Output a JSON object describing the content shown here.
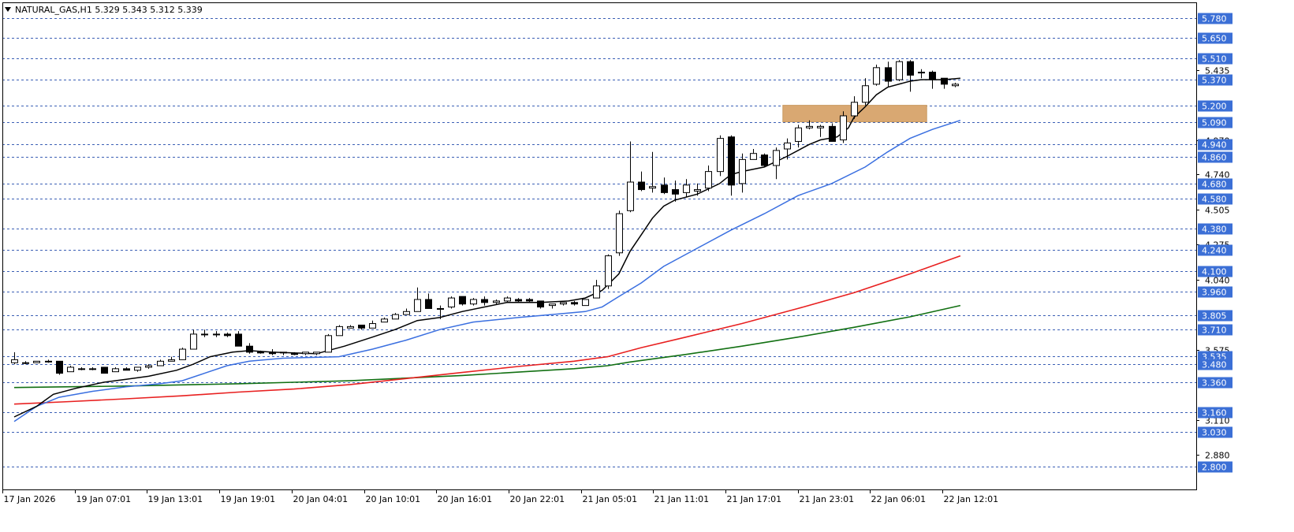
{
  "header": {
    "symbol_line": "NATURAL_GAS,H1  5.329 5.343 5.312 5.339"
  },
  "colors": {
    "background": "#ffffff",
    "frame": "#000000",
    "level_line": "#3b5fb5",
    "level_label_bg": "#3b6fd6",
    "candle_up": "#ffffff",
    "candle_down": "#000000",
    "ma_fast": "#000000",
    "ma_medium": "#3a6fe0",
    "ma_slow_red": "#e82020",
    "ma_slow_green": "#127012",
    "zone_fill": "#d9a872"
  },
  "chart_data": {
    "type": "candlestick",
    "symbol": "NATURAL_GAS",
    "timeframe": "H1",
    "ylim": [
      2.8,
      5.8
    ],
    "y_tick_labels": [
      "5.435",
      "4.970",
      "4.740",
      "4.505",
      "4.275",
      "4.040",
      "3.575",
      "3.110",
      "2.880"
    ],
    "price_levels": [
      "5.780",
      "5.650",
      "5.510",
      "5.370",
      "5.200",
      "5.090",
      "4.940",
      "4.860",
      "4.680",
      "4.580",
      "4.380",
      "4.240",
      "4.100",
      "3.960",
      "3.805",
      "3.710",
      "3.535",
      "3.480",
      "3.360",
      "3.160",
      "3.030",
      "2.800"
    ],
    "x_labels": [
      "17 Jan 2026",
      "19 Jan 07:01",
      "19 Jan 13:01",
      "19 Jan 19:01",
      "20 Jan 04:01",
      "20 Jan 10:01",
      "20 Jan 16:01",
      "20 Jan 22:01",
      "21 Jan 05:01",
      "21 Jan 11:01",
      "21 Jan 17:01",
      "21 Jan 23:01",
      "22 Jan 06:01",
      "22 Jan 12:01"
    ],
    "zone": {
      "high": 5.2,
      "low": 5.09,
      "start_bar": 69,
      "end_bar": 81
    },
    "ohlc": [
      [
        3.49,
        3.51,
        3.56,
        3.48
      ],
      [
        3.49,
        3.49,
        3.5,
        3.48
      ],
      [
        3.49,
        3.5,
        3.5,
        3.49
      ],
      [
        3.5,
        3.5,
        3.51,
        3.49
      ],
      [
        3.5,
        3.42,
        3.5,
        3.41
      ],
      [
        3.43,
        3.46,
        3.47,
        3.43
      ],
      [
        3.45,
        3.45,
        3.46,
        3.44
      ],
      [
        3.45,
        3.45,
        3.46,
        3.44
      ],
      [
        3.46,
        3.42,
        3.46,
        3.42
      ],
      [
        3.43,
        3.45,
        3.46,
        3.43
      ],
      [
        3.45,
        3.44,
        3.46,
        3.44
      ],
      [
        3.44,
        3.46,
        3.46,
        3.43
      ],
      [
        3.46,
        3.47,
        3.48,
        3.45
      ],
      [
        3.47,
        3.5,
        3.51,
        3.47
      ],
      [
        3.5,
        3.51,
        3.53,
        3.5
      ],
      [
        3.51,
        3.58,
        3.59,
        3.51
      ],
      [
        3.58,
        3.68,
        3.71,
        3.58
      ],
      [
        3.68,
        3.68,
        3.71,
        3.66
      ],
      [
        3.68,
        3.68,
        3.7,
        3.66
      ],
      [
        3.68,
        3.67,
        3.69,
        3.66
      ],
      [
        3.68,
        3.6,
        3.7,
        3.6
      ],
      [
        3.6,
        3.56,
        3.62,
        3.55
      ],
      [
        3.56,
        3.56,
        3.57,
        3.55
      ],
      [
        3.56,
        3.55,
        3.58,
        3.54
      ],
      [
        3.56,
        3.56,
        3.56,
        3.54
      ],
      [
        3.55,
        3.55,
        3.56,
        3.54
      ],
      [
        3.55,
        3.56,
        3.56,
        3.54
      ],
      [
        3.55,
        3.56,
        3.56,
        3.54
      ],
      [
        3.56,
        3.67,
        3.68,
        3.56
      ],
      [
        3.67,
        3.73,
        3.74,
        3.67
      ],
      [
        3.72,
        3.73,
        3.74,
        3.72
      ],
      [
        3.74,
        3.72,
        3.74,
        3.71
      ],
      [
        3.72,
        3.75,
        3.77,
        3.72
      ],
      [
        3.76,
        3.78,
        3.79,
        3.76
      ],
      [
        3.78,
        3.81,
        3.82,
        3.78
      ],
      [
        3.81,
        3.83,
        3.85,
        3.81
      ],
      [
        3.83,
        3.91,
        3.99,
        3.83
      ],
      [
        3.91,
        3.85,
        3.95,
        3.85
      ],
      [
        3.85,
        3.85,
        3.87,
        3.78
      ],
      [
        3.86,
        3.92,
        3.93,
        3.85
      ],
      [
        3.93,
        3.88,
        3.93,
        3.87
      ],
      [
        3.88,
        3.91,
        3.92,
        3.87
      ],
      [
        3.91,
        3.89,
        3.93,
        3.87
      ],
      [
        3.89,
        3.9,
        3.91,
        3.88
      ],
      [
        3.9,
        3.92,
        3.93,
        3.89
      ],
      [
        3.91,
        3.9,
        3.92,
        3.89
      ],
      [
        3.91,
        3.9,
        3.92,
        3.89
      ],
      [
        3.9,
        3.86,
        3.9,
        3.85
      ],
      [
        3.87,
        3.88,
        3.88,
        3.85
      ],
      [
        3.88,
        3.89,
        3.89,
        3.87
      ],
      [
        3.89,
        3.88,
        3.9,
        3.87
      ],
      [
        3.87,
        3.91,
        3.91,
        3.87
      ],
      [
        3.92,
        4.0,
        4.04,
        3.92
      ],
      [
        4.0,
        4.2,
        4.21,
        3.98
      ],
      [
        4.22,
        4.48,
        4.5,
        4.2
      ],
      [
        4.5,
        4.69,
        4.96,
        4.49
      ],
      [
        4.69,
        4.64,
        4.76,
        4.63
      ],
      [
        4.65,
        4.66,
        4.89,
        4.62
      ],
      [
        4.67,
        4.62,
        4.72,
        4.61
      ],
      [
        4.64,
        4.61,
        4.7,
        4.56
      ],
      [
        4.62,
        4.67,
        4.71,
        4.59
      ],
      [
        4.63,
        4.64,
        4.68,
        4.6
      ],
      [
        4.65,
        4.76,
        4.8,
        4.63
      ],
      [
        4.76,
        4.98,
        5.0,
        4.73
      ],
      [
        4.99,
        4.67,
        5.0,
        4.6
      ],
      [
        4.68,
        4.84,
        4.88,
        4.62
      ],
      [
        4.84,
        4.88,
        4.91,
        4.84
      ],
      [
        4.87,
        4.8,
        4.88,
        4.79
      ],
      [
        4.8,
        4.9,
        4.92,
        4.71
      ],
      [
        4.91,
        4.95,
        4.98,
        4.84
      ],
      [
        4.96,
        5.05,
        5.07,
        4.92
      ],
      [
        5.05,
        5.06,
        5.1,
        5.04
      ],
      [
        5.05,
        5.06,
        5.07,
        4.99
      ],
      [
        5.06,
        4.96,
        5.08,
        4.96
      ],
      [
        4.97,
        5.13,
        5.16,
        4.95
      ],
      [
        5.13,
        5.22,
        5.26,
        5.11
      ],
      [
        5.22,
        5.33,
        5.38,
        5.2
      ],
      [
        5.34,
        5.45,
        5.47,
        5.33
      ],
      [
        5.45,
        5.36,
        5.49,
        5.32
      ],
      [
        5.37,
        5.49,
        5.5,
        5.36
      ],
      [
        5.49,
        5.4,
        5.5,
        5.29
      ],
      [
        5.42,
        5.42,
        5.44,
        5.38
      ],
      [
        5.42,
        5.37,
        5.43,
        5.31
      ],
      [
        5.38,
        5.34,
        5.36,
        5.31
      ],
      [
        5.33,
        5.34,
        5.35,
        5.32
      ]
    ],
    "ma_fast_values": [
      [
        0,
        3.13
      ],
      [
        2,
        3.2
      ],
      [
        3.5,
        3.28
      ],
      [
        5.5,
        3.32
      ],
      [
        8,
        3.36
      ],
      [
        10,
        3.38
      ],
      [
        12,
        3.4
      ],
      [
        14.5,
        3.44
      ],
      [
        16,
        3.48
      ],
      [
        17.5,
        3.53
      ],
      [
        19.5,
        3.56
      ],
      [
        21,
        3.57
      ],
      [
        23,
        3.56
      ],
      [
        27,
        3.55
      ],
      [
        29.5,
        3.6
      ],
      [
        32,
        3.66
      ],
      [
        34,
        3.71
      ],
      [
        36,
        3.77
      ],
      [
        38,
        3.79
      ],
      [
        40,
        3.83
      ],
      [
        42,
        3.86
      ],
      [
        44,
        3.89
      ],
      [
        47,
        3.89
      ],
      [
        49.5,
        3.9
      ],
      [
        51,
        3.92
      ],
      [
        52.5,
        3.97
      ],
      [
        54,
        4.08
      ],
      [
        55,
        4.23
      ],
      [
        56,
        4.34
      ],
      [
        57,
        4.45
      ],
      [
        58,
        4.53
      ],
      [
        59,
        4.57
      ],
      [
        61,
        4.61
      ],
      [
        63,
        4.68
      ],
      [
        64,
        4.74
      ],
      [
        65,
        4.76
      ],
      [
        67,
        4.79
      ],
      [
        69,
        4.86
      ],
      [
        71,
        4.94
      ],
      [
        72,
        4.97
      ],
      [
        73.5,
        4.99
      ],
      [
        74.5,
        5.05
      ],
      [
        75,
        5.12
      ],
      [
        76,
        5.19
      ],
      [
        77,
        5.27
      ],
      [
        78,
        5.32
      ],
      [
        80,
        5.36
      ],
      [
        81,
        5.37
      ],
      [
        83,
        5.37
      ],
      [
        84.5,
        5.38
      ]
    ],
    "ma_medium_values": [
      [
        0,
        3.1
      ],
      [
        2,
        3.2
      ],
      [
        4,
        3.26
      ],
      [
        7,
        3.3
      ],
      [
        10,
        3.33
      ],
      [
        13,
        3.35
      ],
      [
        15,
        3.37
      ],
      [
        17,
        3.42
      ],
      [
        19,
        3.47
      ],
      [
        21,
        3.5
      ],
      [
        24,
        3.52
      ],
      [
        29,
        3.53
      ],
      [
        32,
        3.58
      ],
      [
        35,
        3.64
      ],
      [
        38,
        3.71
      ],
      [
        41,
        3.76
      ],
      [
        45,
        3.79
      ],
      [
        48,
        3.81
      ],
      [
        51,
        3.83
      ],
      [
        52.5,
        3.86
      ],
      [
        54,
        3.93
      ],
      [
        56,
        4.02
      ],
      [
        58,
        4.13
      ],
      [
        61,
        4.25
      ],
      [
        64,
        4.37
      ],
      [
        67,
        4.48
      ],
      [
        70,
        4.6
      ],
      [
        73,
        4.68
      ],
      [
        76,
        4.79
      ],
      [
        78,
        4.89
      ],
      [
        80,
        4.98
      ],
      [
        82,
        5.04
      ],
      [
        84.5,
        5.1
      ]
    ],
    "ma_slow_red_values": [
      [
        0,
        3.215
      ],
      [
        5,
        3.232
      ],
      [
        10,
        3.25
      ],
      [
        15,
        3.27
      ],
      [
        20,
        3.295
      ],
      [
        25,
        3.315
      ],
      [
        30,
        3.345
      ],
      [
        35,
        3.385
      ],
      [
        40,
        3.425
      ],
      [
        45,
        3.465
      ],
      [
        50,
        3.5
      ],
      [
        53,
        3.53
      ],
      [
        56,
        3.59
      ],
      [
        60,
        3.66
      ],
      [
        65,
        3.75
      ],
      [
        70,
        3.85
      ],
      [
        75,
        3.955
      ],
      [
        80,
        4.08
      ],
      [
        84.5,
        4.2
      ]
    ],
    "ma_slow_green_values": [
      [
        0,
        3.325
      ],
      [
        10,
        3.335
      ],
      [
        20,
        3.35
      ],
      [
        30,
        3.37
      ],
      [
        40,
        3.405
      ],
      [
        50,
        3.45
      ],
      [
        53,
        3.47
      ],
      [
        55,
        3.495
      ],
      [
        60,
        3.545
      ],
      [
        65,
        3.6
      ],
      [
        70,
        3.66
      ],
      [
        75,
        3.725
      ],
      [
        80,
        3.795
      ],
      [
        84.5,
        3.87
      ]
    ]
  }
}
